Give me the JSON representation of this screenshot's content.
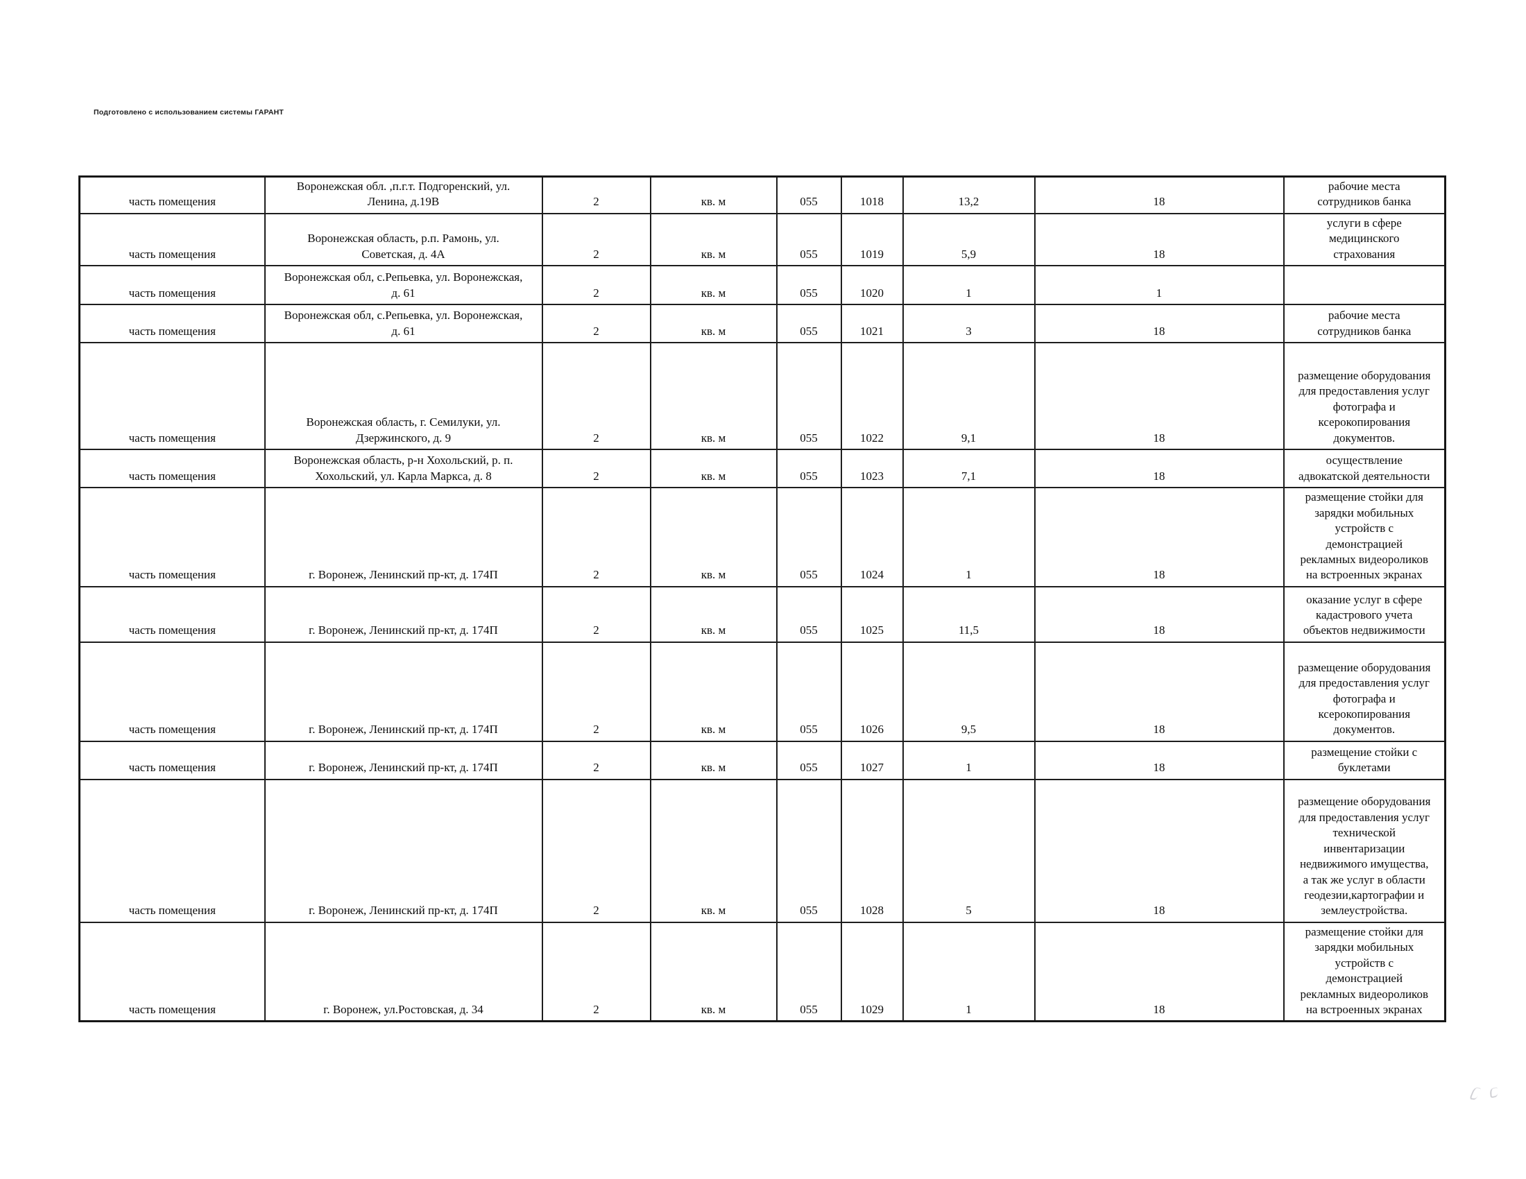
{
  "page": {
    "prepared_note": "Подготовлено с использованием системы ГАРАНТ"
  },
  "table": {
    "column_keys": [
      "object_type",
      "address",
      "count",
      "unit",
      "code",
      "id",
      "area",
      "term",
      "purpose"
    ],
    "rows": [
      {
        "object_type": "часть помещения",
        "address": "Воронежская обл. ,п.г.т. Подгоренский, ул.\nЛенина, д.19В",
        "count": "2",
        "unit": "кв. м",
        "code": "055",
        "id": "1018",
        "area": "13,2",
        "term": "18",
        "purpose": "рабочие места\nсотрудников банка"
      },
      {
        "object_type": "часть помещения",
        "address": "Воронежская область, р.п. Рамонь, ул.\nСоветская, д. 4А",
        "count": "2",
        "unit": "кв. м",
        "code": "055",
        "id": "1019",
        "area": "5,9",
        "term": "18",
        "purpose": "услуги в сфере\nмедицинского\nстрахования"
      },
      {
        "object_type": "часть помещения",
        "address": "Воронежская обл, с.Репьевка, ул. Воронежская,\nд. 61",
        "count": "2",
        "unit": "кв. м",
        "code": "055",
        "id": "1020",
        "area": "1",
        "term": "1",
        "purpose": ""
      },
      {
        "object_type": "часть помещения",
        "address": "Воронежская обл, с.Репьевка, ул. Воронежская,\nд. 61",
        "count": "2",
        "unit": "кв. м",
        "code": "055",
        "id": "1021",
        "area": "3",
        "term": "18",
        "purpose": "рабочие места\nсотрудников банка"
      },
      {
        "object_type": "часть помещения",
        "address": "Воронежская область, г. Семилуки, ул.\nДзержинского, д. 9",
        "count": "2",
        "unit": "кв. м",
        "code": "055",
        "id": "1022",
        "area": "9,1",
        "term": "18",
        "purpose": "размещение оборудования\nдля предоставления услуг\nфотографа и\nксерокопирования\nдокументов."
      },
      {
        "object_type": "часть помещения",
        "address": "Воронежская область, р-н Хохольский, р. п.\nХохольский, ул. Карла Маркса, д. 8",
        "count": "2",
        "unit": "кв. м",
        "code": "055",
        "id": "1023",
        "area": "7,1",
        "term": "18",
        "purpose": "осуществление\nадвокатской деятельности"
      },
      {
        "object_type": "часть помещения",
        "address": "г. Воронеж, Ленинский пр-кт, д. 174П",
        "count": "2",
        "unit": "кв. м",
        "code": "055",
        "id": "1024",
        "area": "1",
        "term": "18",
        "purpose": "размещение стойки для\nзарядки мобильных\nустройств с\nдемонстрацией\nрекламных видеороликов\nна встроенных экранах"
      },
      {
        "object_type": "часть помещения",
        "address": "г. Воронеж, Ленинский пр-кт, д. 174П",
        "count": "2",
        "unit": "кв. м",
        "code": "055",
        "id": "1025",
        "area": "11,5",
        "term": "18",
        "purpose": "оказание услуг в сфере\nкадастрового учета\nобъектов недвижимости"
      },
      {
        "object_type": "часть помещения",
        "address": "г. Воронеж, Ленинский пр-кт, д. 174П",
        "count": "2",
        "unit": "кв. м",
        "code": "055",
        "id": "1026",
        "area": "9,5",
        "term": "18",
        "purpose": "размещение оборудования\nдля предоставления услуг\nфотографа и\nксерокопирования\nдокументов."
      },
      {
        "object_type": "часть помещения",
        "address": "г. Воронеж, Ленинский пр-кт, д. 174П",
        "count": "2",
        "unit": "кв. м",
        "code": "055",
        "id": "1027",
        "area": "1",
        "term": "18",
        "purpose": "размещение стойки с\nбуклетами"
      },
      {
        "object_type": "часть помещения",
        "address": "г. Воронеж, Ленинский пр-кт, д. 174П",
        "count": "2",
        "unit": "кв. м",
        "code": "055",
        "id": "1028",
        "area": "5",
        "term": "18",
        "purpose": "размещение оборудования\nдля предоставления услуг\nтехнической\nинвентаризации\nнедвижимого имущества,\nа так же услуг в области\nгеодезии,картографии и\nземлеустройства."
      },
      {
        "object_type": "часть помещения",
        "address": "г. Воронеж, ул.Ростовская, д. 34",
        "count": "2",
        "unit": "кв. м",
        "code": "055",
        "id": "1029",
        "area": "1",
        "term": "18",
        "purpose": "размещение стойки для\nзарядки мобильных\nустройств с\nдемонстрацией\nрекламных видеороликов\nна встроенных экранах"
      }
    ]
  }
}
